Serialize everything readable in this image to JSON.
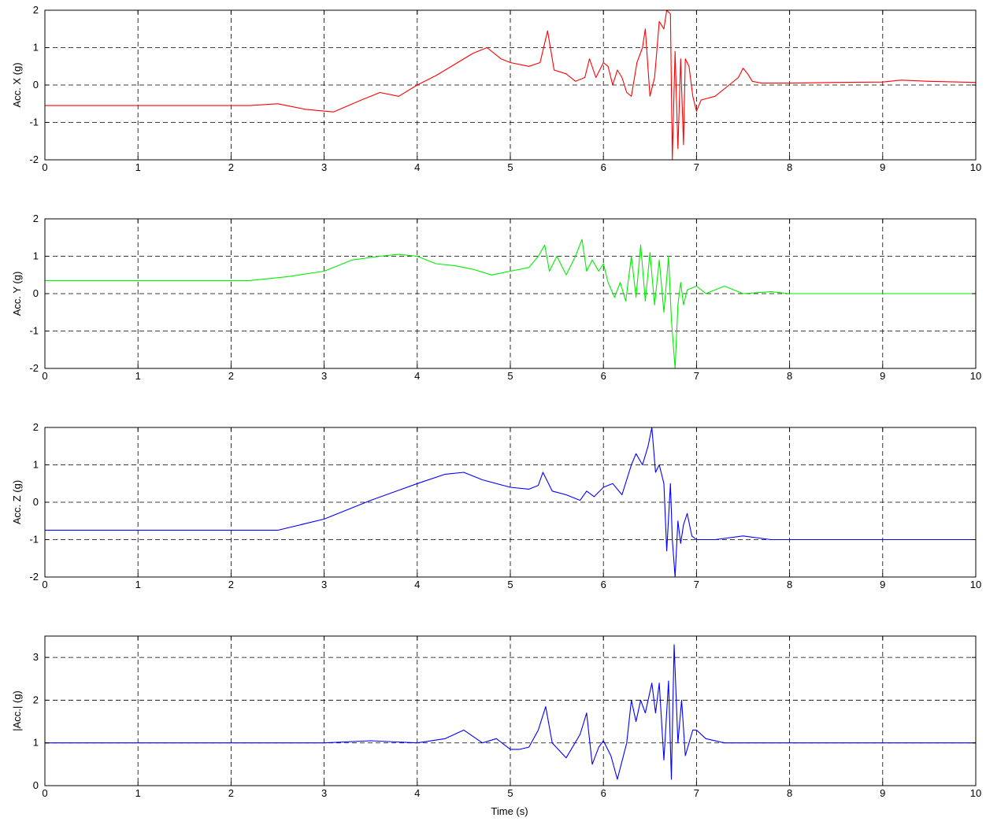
{
  "figure": {
    "xlabel": "Time (s)"
  },
  "chart_data": [
    {
      "type": "line",
      "ylabel": "Acc. X (g)",
      "xlim": [
        0,
        10
      ],
      "ylim": [
        -2,
        2
      ],
      "xticks": [
        "0",
        "1",
        "2",
        "3",
        "4",
        "5",
        "6",
        "7",
        "8",
        "9",
        "10"
      ],
      "yticks": [
        "-2",
        "-1",
        "0",
        "1",
        "2"
      ],
      "grid": true,
      "series": [
        {
          "color": "#ff0000",
          "x": [
            0,
            1,
            1.9,
            2,
            2.2,
            2.5,
            2.8,
            3.1,
            3.4,
            3.6,
            3.8,
            4,
            4.2,
            4.4,
            4.6,
            4.75,
            4.9,
            5,
            5.2,
            5.32,
            5.4,
            5.47,
            5.6,
            5.7,
            5.8,
            5.85,
            5.92,
            6,
            6.05,
            6.1,
            6.15,
            6.2,
            6.25,
            6.3,
            6.36,
            6.42,
            6.45,
            6.5,
            6.55,
            6.6,
            6.65,
            6.68,
            6.72,
            6.74,
            6.77,
            6.8,
            6.83,
            6.86,
            6.88,
            6.92,
            6.96,
            7,
            7.05,
            7.2,
            7.35,
            7.45,
            7.5,
            7.55,
            7.6,
            7.7,
            8,
            8.5,
            9,
            9.2,
            9.5,
            10
          ],
          "values": [
            -0.55,
            -0.55,
            -0.55,
            -0.55,
            -0.55,
            -0.5,
            -0.65,
            -0.72,
            -0.4,
            -0.2,
            -0.3,
            0,
            0.25,
            0.55,
            0.85,
            1.0,
            0.7,
            0.6,
            0.5,
            0.6,
            1.45,
            0.4,
            0.3,
            0.1,
            0.2,
            0.7,
            0.2,
            0.6,
            0.5,
            0.0,
            0.4,
            0.2,
            -0.2,
            -0.3,
            0.6,
            1.0,
            1.5,
            -0.3,
            0.2,
            1.7,
            1.5,
            2.0,
            1.9,
            -2.0,
            0.9,
            -1.7,
            0.7,
            -1.6,
            0.7,
            0.5,
            -0.3,
            -0.7,
            -0.4,
            -0.3,
            0.0,
            0.2,
            0.45,
            0.3,
            0.1,
            0.05,
            0.05,
            0.07,
            0.08,
            0.13,
            0.1,
            0.07
          ]
        }
      ]
    },
    {
      "type": "line",
      "ylabel": "Acc. Y (g)",
      "xlim": [
        0,
        10
      ],
      "ylim": [
        -2,
        2
      ],
      "xticks": [
        "0",
        "1",
        "2",
        "3",
        "4",
        "5",
        "6",
        "7",
        "8",
        "9",
        "10"
      ],
      "yticks": [
        "-2",
        "-1",
        "0",
        "1",
        "2"
      ],
      "grid": true,
      "series": [
        {
          "color": "#00ee00",
          "x": [
            0,
            1,
            1.9,
            2.2,
            2.6,
            3,
            3.3,
            3.6,
            3.8,
            4,
            4.2,
            4.4,
            4.6,
            4.8,
            5,
            5.2,
            5.3,
            5.37,
            5.42,
            5.5,
            5.6,
            5.7,
            5.77,
            5.82,
            5.88,
            5.95,
            6,
            6.05,
            6.12,
            6.18,
            6.24,
            6.3,
            6.35,
            6.4,
            6.45,
            6.5,
            6.55,
            6.6,
            6.65,
            6.7,
            6.73,
            6.77,
            6.8,
            6.83,
            6.86,
            6.9,
            7,
            7.1,
            7.3,
            7.5,
            7.8,
            8,
            9,
            10
          ],
          "values": [
            0.35,
            0.35,
            0.35,
            0.35,
            0.45,
            0.6,
            0.9,
            1.0,
            1.05,
            1.0,
            0.8,
            0.75,
            0.65,
            0.5,
            0.6,
            0.7,
            1.0,
            1.3,
            0.6,
            1.0,
            0.5,
            1.0,
            1.45,
            0.6,
            0.9,
            0.6,
            0.8,
            0.3,
            -0.1,
            0.3,
            -0.2,
            1.0,
            -0.1,
            1.3,
            -0.2,
            1.1,
            -0.3,
            0.9,
            -0.5,
            1.0,
            -0.7,
            -2.0,
            -0.3,
            0.3,
            -0.3,
            0.1,
            0.2,
            0.0,
            0.2,
            0.0,
            0.05,
            0.0,
            0.0,
            0.0
          ]
        }
      ]
    },
    {
      "type": "line",
      "ylabel": "Acc. Z (g)",
      "xlim": [
        0,
        10
      ],
      "ylim": [
        -2,
        2
      ],
      "xticks": [
        "0",
        "1",
        "2",
        "3",
        "4",
        "5",
        "6",
        "7",
        "8",
        "9",
        "10"
      ],
      "yticks": [
        "-2",
        "-1",
        "0",
        "1",
        "2"
      ],
      "grid": true,
      "series": [
        {
          "color": "#0000ff",
          "x": [
            0,
            1,
            1.9,
            2,
            2.5,
            3,
            3.5,
            4,
            4.3,
            4.5,
            4.7,
            5,
            5.2,
            5.3,
            5.35,
            5.45,
            5.6,
            5.75,
            5.82,
            5.9,
            6,
            6.1,
            6.2,
            6.3,
            6.35,
            6.42,
            6.48,
            6.52,
            6.56,
            6.6,
            6.65,
            6.68,
            6.72,
            6.74,
            6.77,
            6.8,
            6.83,
            6.86,
            6.9,
            6.95,
            7,
            7.2,
            7.5,
            7.8,
            8,
            8.5,
            9,
            10
          ],
          "values": [
            -0.75,
            -0.75,
            -0.75,
            -0.75,
            -0.75,
            -0.45,
            0.05,
            0.5,
            0.75,
            0.8,
            0.6,
            0.4,
            0.35,
            0.45,
            0.8,
            0.3,
            0.2,
            0.05,
            0.3,
            0.15,
            0.4,
            0.5,
            0.2,
            1.0,
            1.3,
            1.0,
            1.5,
            2.0,
            0.8,
            1.0,
            0.5,
            -1.3,
            0.5,
            -1.0,
            -2.0,
            -0.5,
            -1.1,
            -0.6,
            -0.3,
            -0.9,
            -1.0,
            -1.0,
            -0.9,
            -1.0,
            -1.0,
            -1.0,
            -1.0,
            -1.0
          ]
        }
      ]
    },
    {
      "type": "line",
      "ylabel": "|Acc.| (g)",
      "xlim": [
        0,
        10
      ],
      "ylim": [
        0,
        3.5
      ],
      "xticks": [
        "0",
        "1",
        "2",
        "3",
        "4",
        "5",
        "6",
        "7",
        "8",
        "9",
        "10"
      ],
      "yticks": [
        "0",
        "1",
        "2",
        "3"
      ],
      "grid": true,
      "series": [
        {
          "color": "#0000ff",
          "x": [
            0,
            1,
            2,
            2.5,
            3,
            3.5,
            4,
            4.3,
            4.5,
            4.7,
            4.85,
            5,
            5.1,
            5.2,
            5.3,
            5.38,
            5.45,
            5.6,
            5.75,
            5.82,
            5.88,
            5.95,
            6,
            6.08,
            6.15,
            6.25,
            6.3,
            6.35,
            6.4,
            6.45,
            6.52,
            6.56,
            6.6,
            6.65,
            6.7,
            6.73,
            6.76,
            6.8,
            6.84,
            6.88,
            6.92,
            6.96,
            7,
            7.1,
            7.3,
            7.6,
            8,
            9,
            10
          ],
          "values": [
            1.0,
            1.0,
            1.0,
            1.0,
            1.0,
            1.05,
            1.0,
            1.1,
            1.3,
            1.0,
            1.1,
            0.85,
            0.85,
            0.9,
            1.3,
            1.85,
            1.0,
            0.65,
            1.2,
            1.7,
            0.5,
            0.9,
            1.05,
            0.7,
            0.15,
            1.0,
            2.0,
            1.5,
            2.0,
            1.7,
            2.4,
            1.7,
            2.4,
            0.6,
            2.45,
            0.15,
            3.3,
            1.0,
            2.0,
            0.7,
            1.0,
            1.3,
            1.3,
            1.1,
            1.0,
            1.0,
            1.0,
            1.0,
            1.0
          ]
        }
      ]
    }
  ]
}
